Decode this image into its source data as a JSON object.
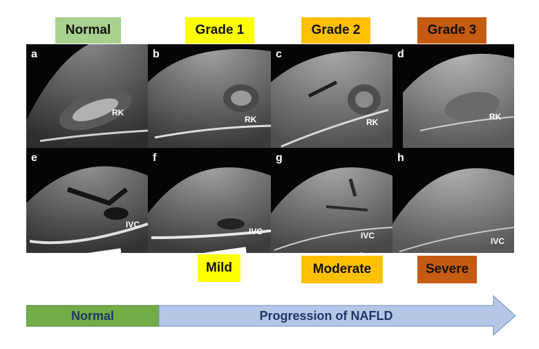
{
  "grades": {
    "normal": "Normal",
    "grade1": "Grade 1",
    "grade2": "Grade 2",
    "grade3": "Grade 3"
  },
  "severity": {
    "mild": "Mild",
    "moderate": "Moderate",
    "severe": "Severe"
  },
  "panels": {
    "a": "a",
    "b": "b",
    "c": "c",
    "d": "d",
    "e": "e",
    "f": "f",
    "g": "g",
    "h": "h"
  },
  "organs": {
    "rk": "RK",
    "ivc": "IVC"
  },
  "progression": {
    "normal": "Normal",
    "nafld": "Progression of NAFLD"
  },
  "colors": {
    "normal_label": "#a9d18e",
    "grade1_label": "#ffff00",
    "grade2_label": "#ffc000",
    "grade3_label": "#c55a11",
    "normal_bar": "#70ad47",
    "progress_arrow": "#b4c7e7",
    "progress_text": "#1f3864"
  }
}
